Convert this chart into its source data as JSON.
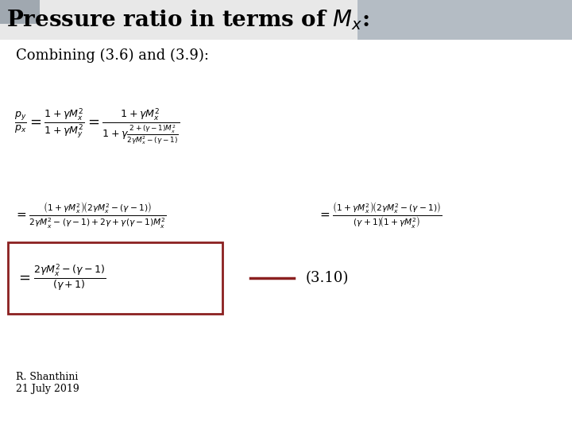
{
  "title": "Pressure ratio in terms of $M_x$:",
  "subtitle": "Combining (3.6) and (3.9):",
  "bg_color": "#ffffff",
  "title_bg_left": "#f0f0f0",
  "title_bg_right": "#b0b8c0",
  "title_fontsize": 20,
  "subtitle_fontsize": 13,
  "eq1_fontsize": 13,
  "eq2_fontsize": 11,
  "eq3_fontsize": 13,
  "box_color": "#8b2020",
  "line_color": "#8b2020",
  "eq3_label": "(3.10)",
  "footer1": "R. Shanthini",
  "footer2": "21 July 2019",
  "footer_fontsize": 9
}
